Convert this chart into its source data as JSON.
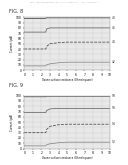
{
  "header_text": "Patent Application Publication   Dec. 14, 2006   Sheet 4 of 4        US 2006/0278111 A1",
  "fig8_label": "FIG. 8",
  "fig9_label": "FIG. 9",
  "xlabel": "Ozone surface resistance (Ohms/square)",
  "ylabel": "Current (pA)",
  "background_color": "#ffffff",
  "plot_bg_color": "#e8e8e8",
  "grid_color": "#cccccc",
  "fig8_lines": [
    {
      "label": "48",
      "color": "#444444",
      "style": "-",
      "x": [
        0,
        1,
        2,
        2.5,
        2.55,
        2.6,
        3,
        4,
        5,
        6,
        7,
        8,
        9,
        10
      ],
      "y": [
        98,
        98,
        98,
        98,
        99,
        99,
        99,
        99,
        99,
        99,
        99,
        99,
        99,
        99
      ]
    },
    {
      "label": "46",
      "color": "#666666",
      "style": "-",
      "x": [
        0,
        1,
        2,
        2.5,
        2.55,
        2.6,
        3,
        4,
        5,
        6,
        7,
        8,
        9,
        10
      ],
      "y": [
        72,
        72,
        72,
        72,
        75,
        78,
        80,
        80,
        80,
        80,
        80,
        80,
        80,
        80
      ]
    },
    {
      "label": "44",
      "color": "#444444",
      "style": "--",
      "x": [
        0,
        1,
        2,
        2.5,
        2.55,
        2.6,
        3,
        4,
        5,
        6,
        7,
        8,
        9,
        10
      ],
      "y": [
        40,
        40,
        40,
        40,
        42,
        45,
        50,
        52,
        53,
        53,
        53,
        53,
        53,
        53
      ]
    },
    {
      "label": "42",
      "color": "#888888",
      "style": "-",
      "x": [
        0,
        1,
        2,
        2.5,
        2.55,
        2.6,
        3,
        4,
        5,
        6,
        7,
        8,
        9,
        10
      ],
      "y": [
        8,
        8,
        8,
        8,
        9,
        10,
        12,
        14,
        15,
        15,
        15,
        15,
        15,
        15
      ]
    }
  ],
  "fig9_lines": [
    {
      "label": "58",
      "color": "#444444",
      "style": "-",
      "x": [
        0,
        1,
        2,
        2.5,
        2.55,
        2.6,
        3,
        4,
        5,
        6,
        7,
        8,
        9,
        10
      ],
      "y": [
        98,
        98,
        98,
        98,
        99,
        99,
        99,
        99,
        99,
        99,
        99,
        99,
        99,
        99
      ]
    },
    {
      "label": "56",
      "color": "#666666",
      "style": "-",
      "x": [
        0,
        1,
        2,
        2.5,
        2.55,
        2.6,
        3,
        4,
        5,
        6,
        7,
        8,
        9,
        10
      ],
      "y": [
        68,
        68,
        68,
        68,
        70,
        72,
        75,
        76,
        76,
        76,
        76,
        76,
        76,
        76
      ]
    },
    {
      "label": "54",
      "color": "#444444",
      "style": "--",
      "x": [
        0,
        1,
        2,
        2.5,
        2.55,
        2.6,
        3,
        4,
        5,
        6,
        7,
        8,
        9,
        10
      ],
      "y": [
        30,
        30,
        30,
        30,
        32,
        36,
        42,
        45,
        46,
        46,
        46,
        46,
        46,
        46
      ]
    },
    {
      "label": "52",
      "color": "#888888",
      "style": "-",
      "x": [
        0,
        1,
        2,
        2.5,
        2.55,
        2.6,
        3,
        4,
        5,
        6,
        7,
        8,
        9,
        10
      ],
      "y": [
        5,
        5,
        5,
        5,
        6,
        7,
        9,
        11,
        12,
        12,
        12,
        12,
        12,
        12
      ]
    }
  ],
  "ylim": [
    0,
    100
  ],
  "xlim": [
    0,
    10
  ],
  "yticks": [
    0,
    10,
    20,
    30,
    40,
    50,
    60,
    70,
    80,
    90,
    100
  ],
  "xticks": [
    0,
    1,
    2,
    3,
    4,
    5,
    6,
    7,
    8,
    9,
    10
  ],
  "yticklabels": [
    "0",
    "10",
    "20",
    "30",
    "40",
    "50",
    "60",
    "70",
    "80",
    "90",
    "100"
  ],
  "xticklabels": [
    "0",
    "1",
    "2",
    "3",
    "4",
    "5",
    "6",
    "7",
    "8",
    "9",
    "10"
  ]
}
